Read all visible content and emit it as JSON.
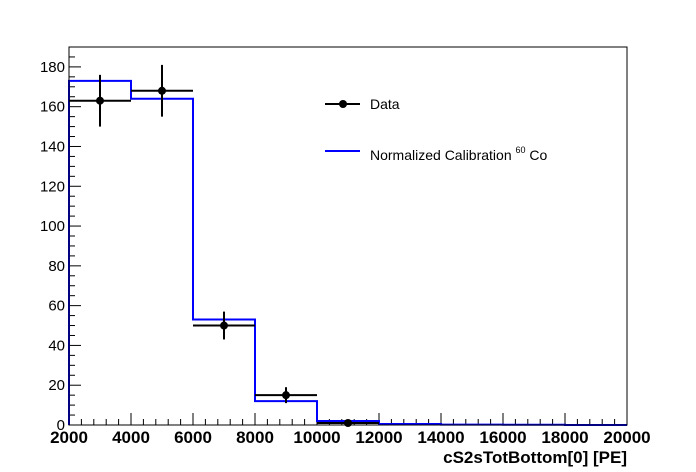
{
  "chart_data": {
    "type": "histogram",
    "xlabel": "cS2sTotBottom[0]  [PE]",
    "ylabel": "",
    "xlim": [
      2000,
      20000
    ],
    "ylim": [
      0,
      190
    ],
    "x_ticks": [
      2000,
      4000,
      6000,
      8000,
      10000,
      12000,
      14000,
      16000,
      18000,
      20000
    ],
    "y_ticks": [
      0,
      20,
      40,
      60,
      80,
      100,
      120,
      140,
      160,
      180
    ],
    "grid": false,
    "legend_position": "top-right",
    "series": [
      {
        "name": "Data",
        "kind": "points-with-errors",
        "color": "#000000",
        "points": [
          {
            "x": 3000,
            "y": 163,
            "xerr": 1000,
            "yerr": 13
          },
          {
            "x": 5000,
            "y": 168,
            "xerr": 1000,
            "yerr": 13
          },
          {
            "x": 7000,
            "y": 50,
            "xerr": 1000,
            "yerr": 7
          },
          {
            "x": 9000,
            "y": 15,
            "xerr": 1000,
            "yerr": 4
          },
          {
            "x": 11000,
            "y": 1,
            "xerr": 1000,
            "yerr": 1
          }
        ]
      },
      {
        "name": "Normalized Calibration",
        "name_superscript": "60",
        "name_suffix": "Co",
        "kind": "step",
        "color": "#0000ff",
        "bin_edges": [
          2000,
          4000,
          6000,
          8000,
          10000,
          12000,
          14000,
          16000,
          18000,
          20000
        ],
        "values": [
          173,
          164,
          53,
          12,
          2,
          0.5,
          0.2,
          0.1,
          0
        ]
      }
    ]
  }
}
